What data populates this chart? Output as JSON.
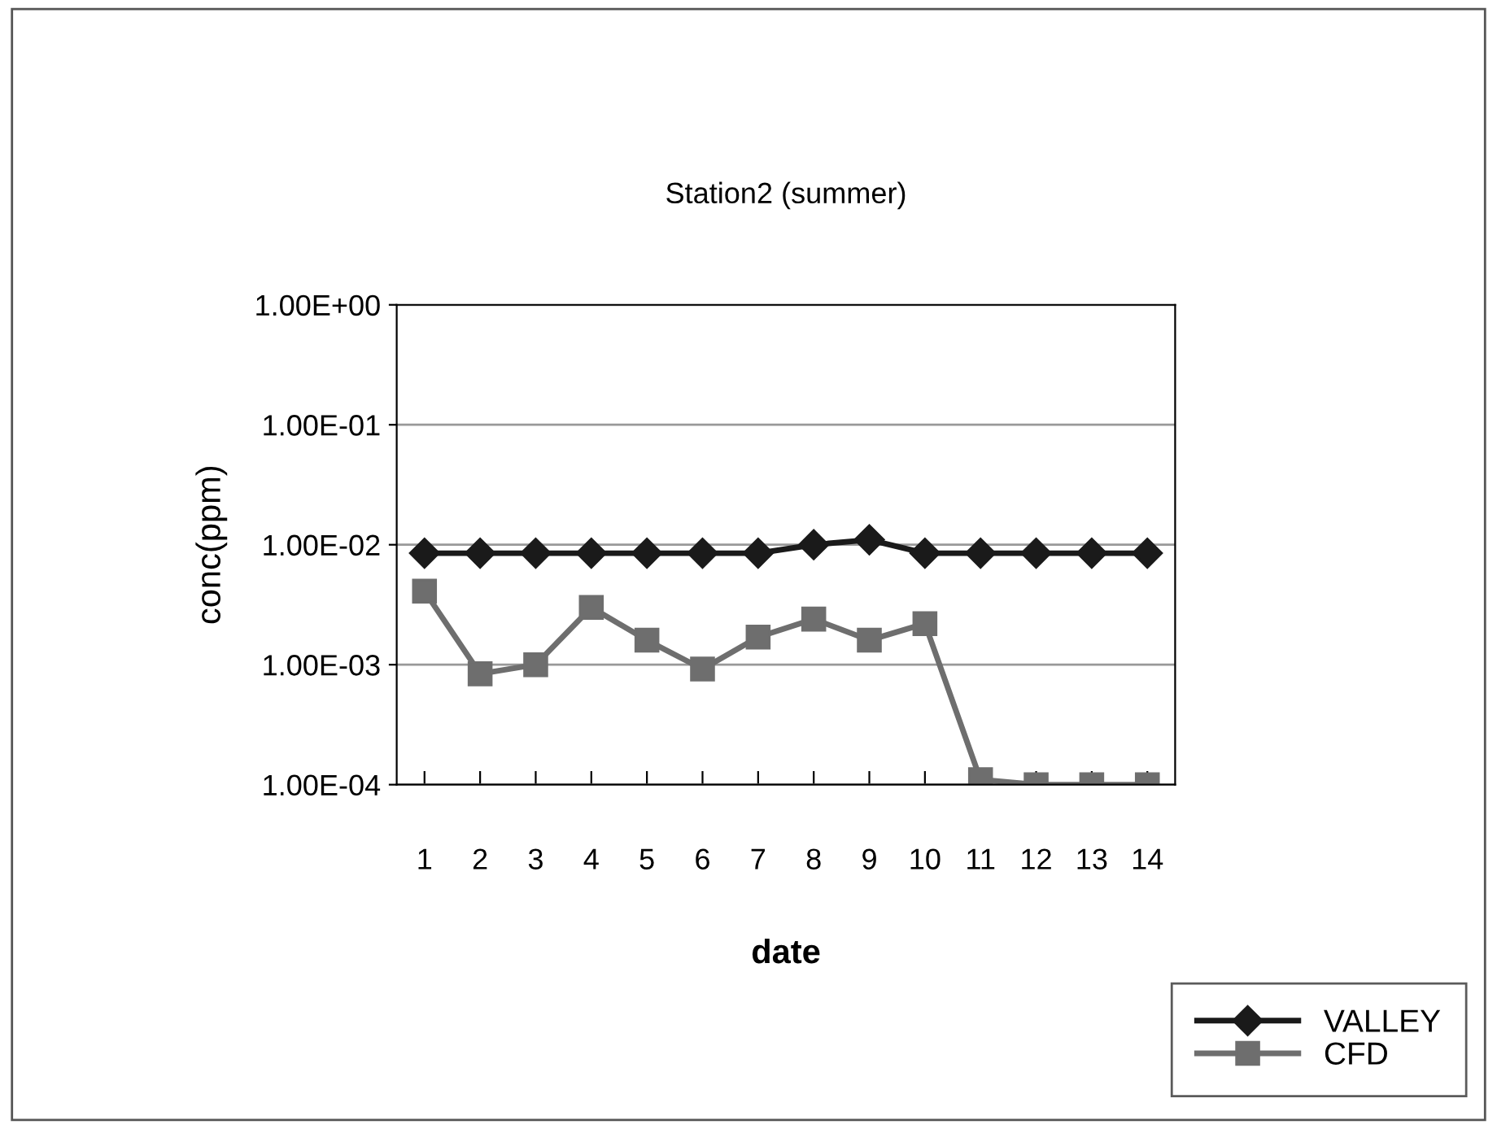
{
  "chart_data": {
    "type": "line",
    "title": "Station2 (summer)",
    "xlabel": "date",
    "ylabel": "conc(ppm)",
    "categories": [
      "1",
      "2",
      "3",
      "4",
      "5",
      "6",
      "7",
      "8",
      "9",
      "10",
      "11",
      "12",
      "13",
      "14"
    ],
    "series": [
      {
        "name": "VALLEY",
        "color": "#1a1a1a",
        "marker": "diamond",
        "values": [
          0.0085,
          0.0085,
          0.0085,
          0.0085,
          0.0085,
          0.0085,
          0.0085,
          0.01,
          0.011,
          0.0085,
          0.0085,
          0.0085,
          0.0085,
          0.0085
        ]
      },
      {
        "name": "CFD",
        "color": "#6e6e6e",
        "marker": "square",
        "values": [
          0.0041,
          0.00084,
          0.001,
          0.003,
          0.0016,
          0.00092,
          0.0017,
          0.0024,
          0.0016,
          0.0022,
          0.00011,
          0.0001,
          0.0001,
          0.0001
        ]
      }
    ],
    "log": true,
    "ylim": [
      0.0001,
      1
    ],
    "yticks": [
      {
        "value": 0.0001,
        "label": "1.00E-04"
      },
      {
        "value": 0.001,
        "label": "1.00E-03"
      },
      {
        "value": 0.01,
        "label": "1.00E-02"
      },
      {
        "value": 0.1,
        "label": "1.00E-01"
      },
      {
        "value": 1,
        "label": "1.00E+00"
      }
    ],
    "grid": "y",
    "legend": "bottom right",
    "line_style": "solid"
  }
}
